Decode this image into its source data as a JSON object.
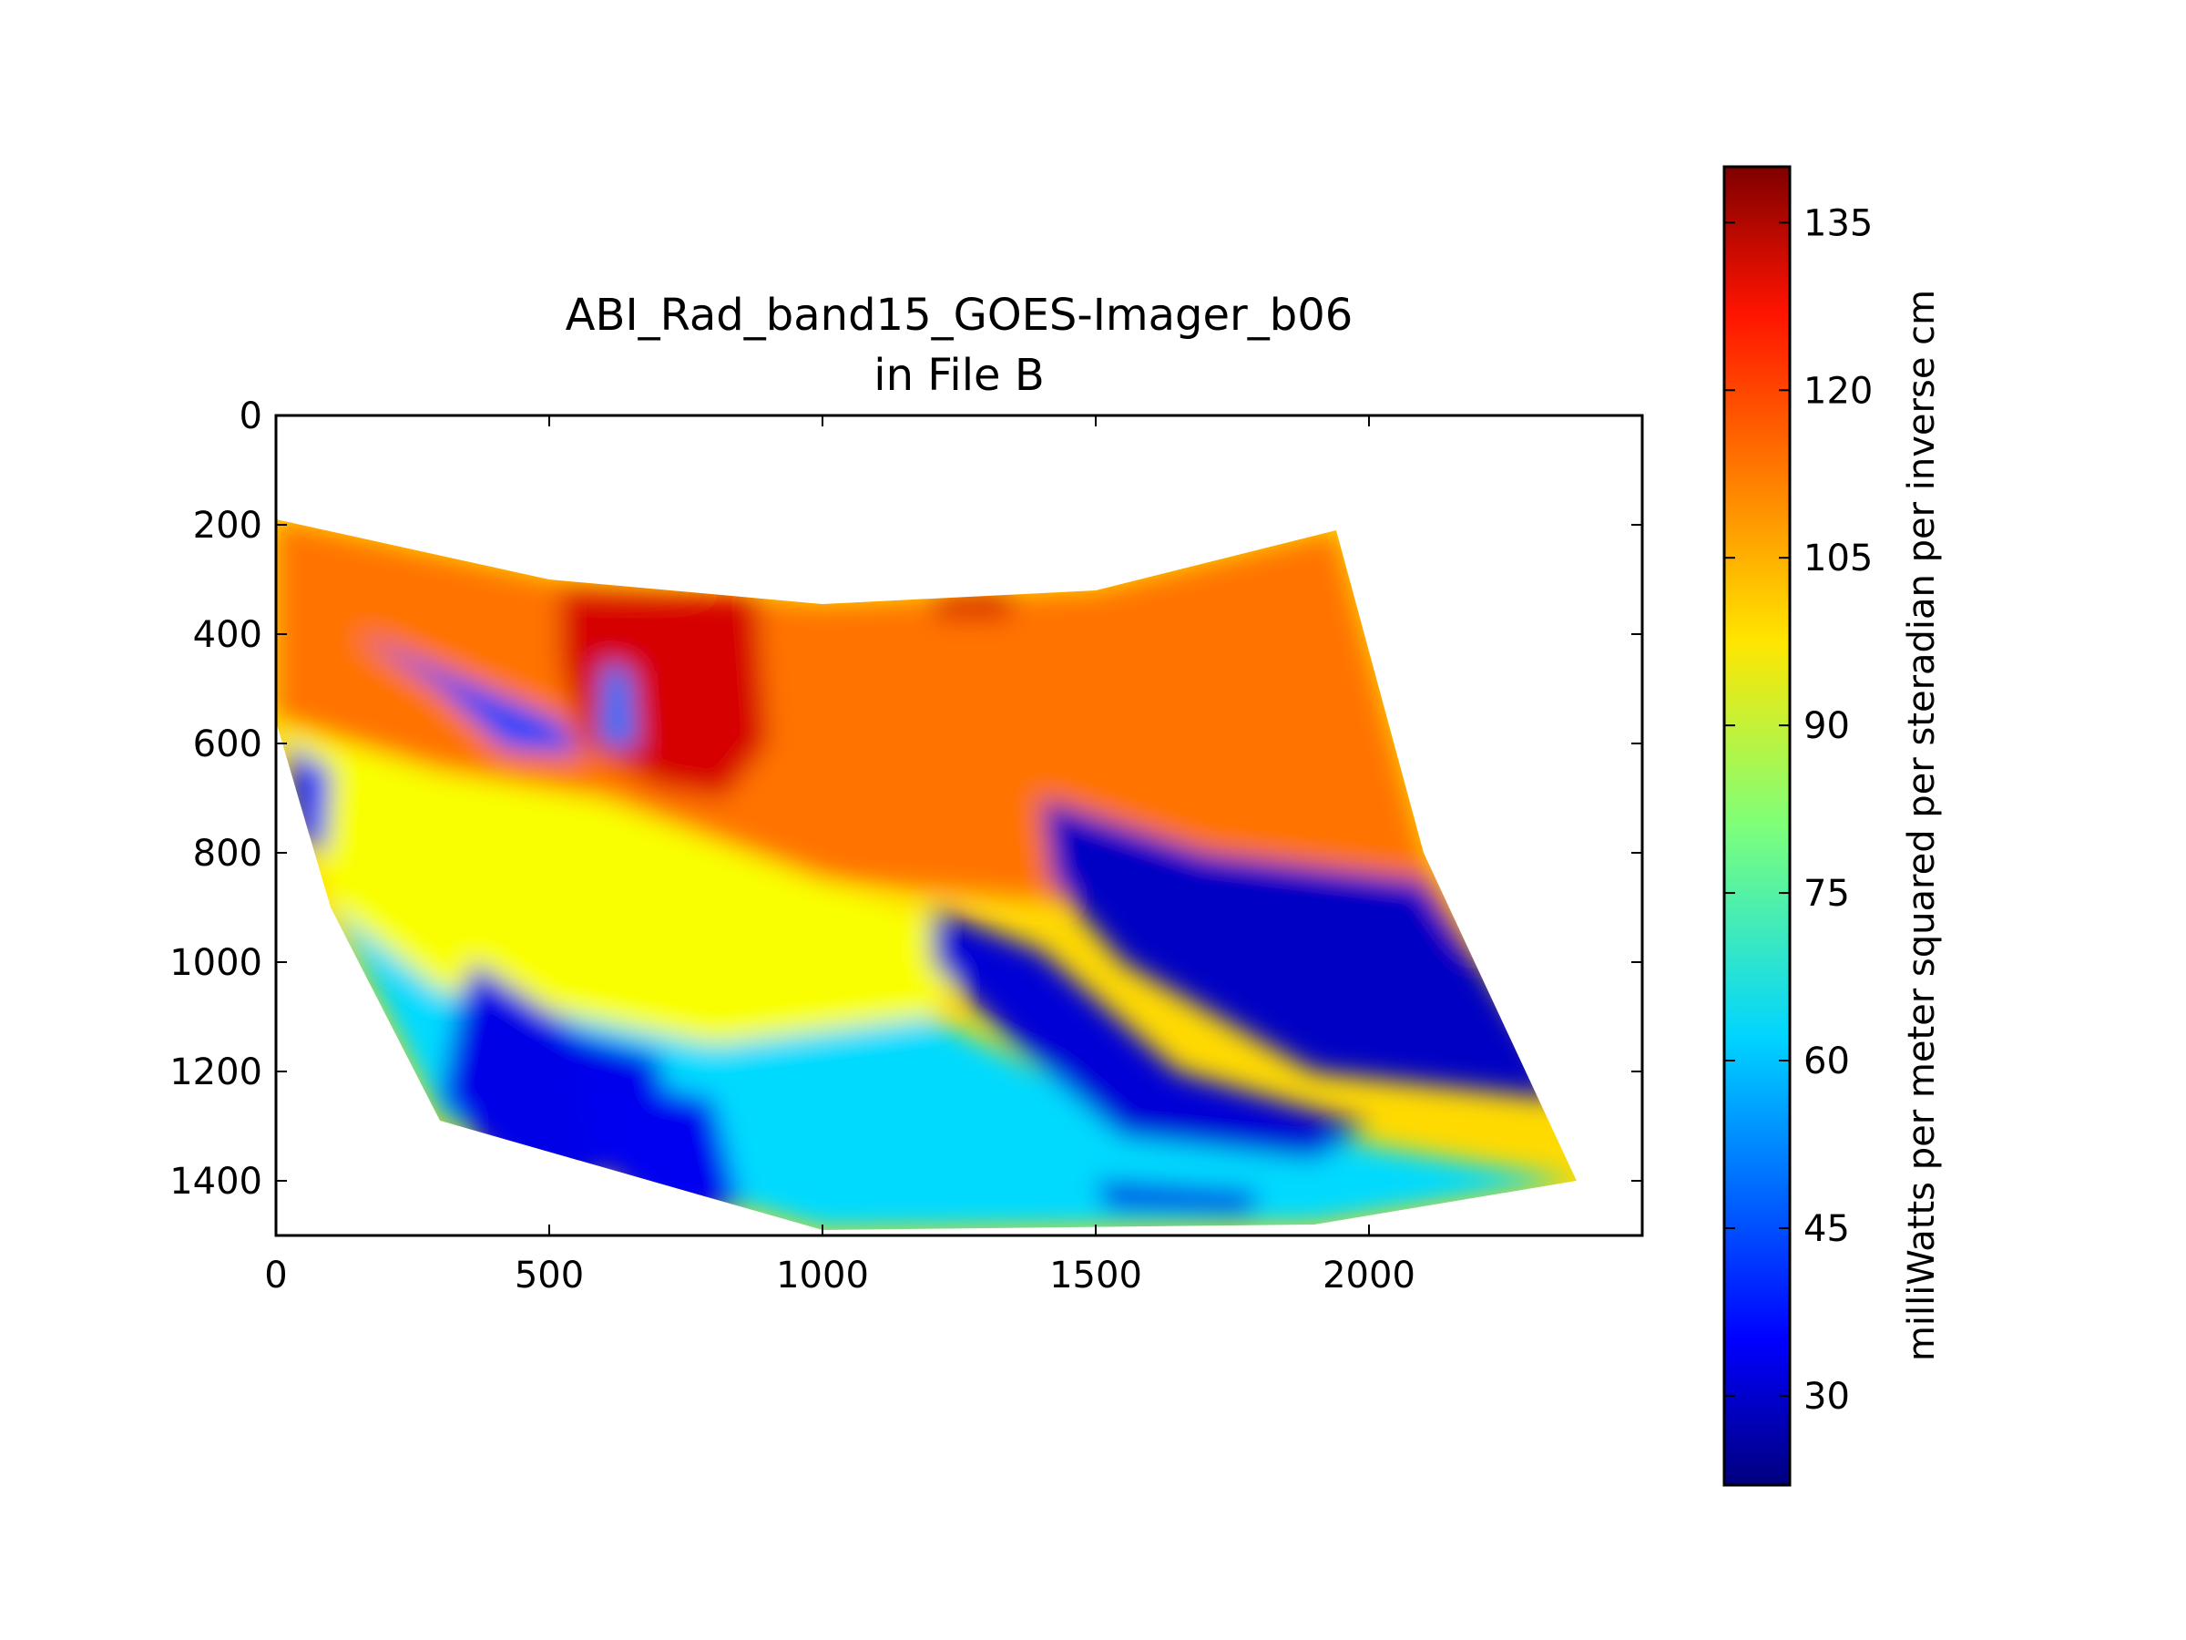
{
  "chart_data": {
    "type": "heatmap",
    "title": "ABI_Rad_band15_GOES-Imager_b06",
    "subtitle": "in File B",
    "xlabel": "",
    "ylabel": "",
    "xlim": [
      0,
      2500
    ],
    "ylim": [
      1500,
      0
    ],
    "x_ticks": [
      0,
      500,
      1000,
      1500,
      2000
    ],
    "y_ticks": [
      0,
      200,
      400,
      600,
      800,
      1000,
      1200,
      1400
    ],
    "grid": false,
    "colorbar": {
      "label": "milliWatts per meter squared per steradian per inverse cm",
      "range": [
        22,
        140
      ],
      "ticks": [
        30,
        45,
        60,
        75,
        90,
        105,
        120,
        135
      ],
      "colormap": "jet"
    },
    "data_footprint": {
      "top_edge": [
        [
          0,
          190
        ],
        [
          500,
          300
        ],
        [
          1000,
          345
        ],
        [
          1500,
          320
        ],
        [
          1940,
          210
        ]
      ],
      "right_edge": [
        [
          1940,
          210
        ],
        [
          2100,
          800
        ],
        [
          2380,
          1400
        ]
      ],
      "bottom_edge": [
        [
          2380,
          1400
        ],
        [
          1900,
          1480
        ],
        [
          1000,
          1490
        ],
        [
          300,
          1290
        ]
      ],
      "left_edge": [
        [
          300,
          1290
        ],
        [
          100,
          900
        ],
        [
          0,
          560
        ],
        [
          0,
          190
        ]
      ]
    },
    "regions": [
      {
        "value": 112,
        "polygon": [
          [
            0,
            190
          ],
          [
            500,
            300
          ],
          [
            1000,
            345
          ],
          [
            1500,
            320
          ],
          [
            1940,
            210
          ],
          [
            2100,
            800
          ],
          [
            2200,
            1000
          ],
          [
            1600,
            900
          ],
          [
            1000,
            850
          ],
          [
            600,
            700
          ],
          [
            300,
            650
          ],
          [
            0,
            560
          ]
        ]
      },
      {
        "value": 130,
        "polygon": [
          [
            520,
            320
          ],
          [
            880,
            330
          ],
          [
            900,
            600
          ],
          [
            820,
            700
          ],
          [
            700,
            680
          ],
          [
            560,
            600
          ],
          [
            520,
            450
          ]
        ]
      },
      {
        "value": 130,
        "polygon": [
          [
            1200,
            330
          ],
          [
            1350,
            325
          ],
          [
            1340,
            370
          ],
          [
            1210,
            370
          ]
        ]
      },
      {
        "value": 95,
        "polygon": [
          [
            0,
            560
          ],
          [
            300,
            650
          ],
          [
            600,
            700
          ],
          [
            1000,
            850
          ],
          [
            1300,
            950
          ],
          [
            1200,
            1100
          ],
          [
            800,
            1150
          ],
          [
            500,
            1100
          ],
          [
            300,
            1050
          ],
          [
            100,
            900
          ]
        ]
      },
      {
        "value": 62,
        "polygon": [
          [
            100,
            900
          ],
          [
            300,
            1050
          ],
          [
            800,
            1150
          ],
          [
            1200,
            1100
          ],
          [
            1500,
            1250
          ],
          [
            2380,
            1400
          ],
          [
            1900,
            1480
          ],
          [
            1000,
            1490
          ],
          [
            300,
            1290
          ]
        ]
      },
      {
        "value": 30,
        "polygon": [
          [
            1400,
            700
          ],
          [
            1700,
            800
          ],
          [
            2100,
            850
          ],
          [
            2300,
            1150
          ],
          [
            2350,
            1250
          ],
          [
            1900,
            1200
          ],
          [
            1550,
            1000
          ],
          [
            1420,
            850
          ]
        ]
      },
      {
        "value": 32,
        "polygon": [
          [
            1200,
            900
          ],
          [
            1400,
            980
          ],
          [
            1650,
            1200
          ],
          [
            2000,
            1300
          ],
          [
            1900,
            1360
          ],
          [
            1550,
            1320
          ],
          [
            1350,
            1150
          ],
          [
            1200,
            1000
          ]
        ]
      },
      {
        "value": 33,
        "polygon": [
          [
            1500,
            1400
          ],
          [
            1800,
            1420
          ],
          [
            1780,
            1460
          ],
          [
            1520,
            1450
          ]
        ]
      },
      {
        "value": 34,
        "polygon": [
          [
            360,
            1000
          ],
          [
            560,
            1130
          ],
          [
            700,
            1170
          ],
          [
            720,
            1290
          ],
          [
            580,
            1400
          ],
          [
            500,
            1430
          ],
          [
            400,
            1360
          ],
          [
            300,
            1250
          ],
          [
            330,
            1100
          ]
        ]
      },
      {
        "value": 35,
        "polygon": [
          [
            560,
            1200
          ],
          [
            800,
            1250
          ],
          [
            850,
            1450
          ],
          [
            700,
            1470
          ],
          [
            600,
            1380
          ]
        ]
      },
      {
        "value": 40,
        "polygon": [
          [
            20,
            600
          ],
          [
            100,
            650
          ],
          [
            90,
            800
          ],
          [
            40,
            780
          ]
        ]
      },
      {
        "value": 45,
        "polygon": [
          [
            150,
            400
          ],
          [
            520,
            560
          ],
          [
            560,
            620
          ],
          [
            420,
            610
          ],
          [
            300,
            500
          ]
        ]
      },
      {
        "value": 50,
        "polygon": [
          [
            600,
            450
          ],
          [
            650,
            470
          ],
          [
            660,
            610
          ],
          [
            590,
            600
          ]
        ]
      }
    ]
  }
}
